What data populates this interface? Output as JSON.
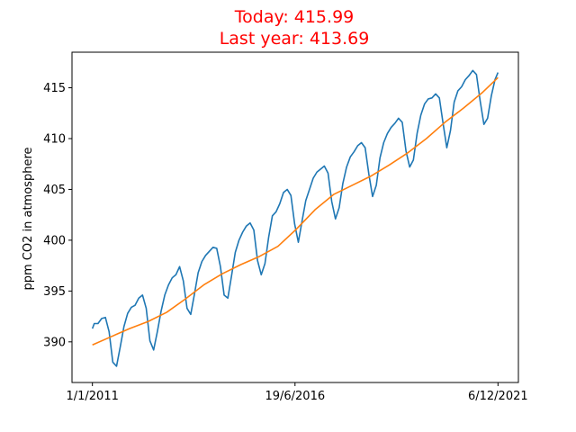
{
  "chart_data": {
    "type": "line",
    "title_lines": [
      "Today: 415.99",
      "Last year: 413.69"
    ],
    "title_color": "#ff0000",
    "ylabel": "ppm CO2 in atmosphere",
    "xlabel": "",
    "x_ticks": [
      {
        "value": 2011.0,
        "label": "1/1/2011"
      },
      {
        "value": 2016.46,
        "label": "19/6/2016"
      },
      {
        "value": 2021.93,
        "label": "6/12/2021"
      }
    ],
    "y_ticks": [
      390,
      395,
      400,
      405,
      410,
      415
    ],
    "xlim": [
      2010.45,
      2022.48
    ],
    "ylim": [
      386.0,
      418.5
    ],
    "grid": false,
    "series": [
      {
        "color": "#1f77b4",
        "x": [
          2011.0,
          2011.05,
          2011.15,
          2011.25,
          2011.35,
          2011.45,
          2011.55,
          2011.65,
          2011.75,
          2011.85,
          2011.95,
          2012.05,
          2012.15,
          2012.25,
          2012.35,
          2012.45,
          2012.55,
          2012.65,
          2012.75,
          2012.85,
          2012.95,
          2013.05,
          2013.15,
          2013.25,
          2013.35,
          2013.45,
          2013.55,
          2013.65,
          2013.75,
          2013.85,
          2013.95,
          2014.05,
          2014.15,
          2014.25,
          2014.35,
          2014.45,
          2014.55,
          2014.65,
          2014.75,
          2014.85,
          2014.95,
          2015.05,
          2015.15,
          2015.25,
          2015.35,
          2015.45,
          2015.55,
          2015.65,
          2015.75,
          2015.85,
          2015.95,
          2016.05,
          2016.15,
          2016.25,
          2016.35,
          2016.45,
          2016.55,
          2016.65,
          2016.75,
          2016.85,
          2016.95,
          2017.05,
          2017.15,
          2017.25,
          2017.35,
          2017.45,
          2017.55,
          2017.65,
          2017.75,
          2017.85,
          2017.95,
          2018.05,
          2018.15,
          2018.25,
          2018.35,
          2018.45,
          2018.55,
          2018.65,
          2018.75,
          2018.85,
          2018.95,
          2019.05,
          2019.15,
          2019.25,
          2019.35,
          2019.45,
          2019.55,
          2019.65,
          2019.75,
          2019.85,
          2019.95,
          2020.05,
          2020.15,
          2020.25,
          2020.35,
          2020.45,
          2020.55,
          2020.65,
          2020.75,
          2020.85,
          2020.95,
          2021.05,
          2021.15,
          2021.25,
          2021.35,
          2021.45,
          2021.55,
          2021.65,
          2021.75,
          2021.85,
          2021.93
        ],
        "values": [
          391.3,
          391.8,
          391.8,
          392.3,
          392.4,
          391.0,
          388.0,
          387.6,
          389.5,
          391.5,
          392.8,
          393.4,
          393.6,
          394.3,
          394.6,
          393.3,
          390.1,
          389.2,
          391.0,
          393.0,
          394.6,
          395.6,
          396.3,
          396.6,
          397.4,
          396.0,
          393.3,
          392.7,
          394.7,
          396.8,
          397.9,
          398.5,
          398.9,
          399.3,
          399.2,
          397.4,
          394.6,
          394.3,
          396.5,
          398.8,
          400.0,
          400.8,
          401.4,
          401.7,
          401.0,
          398.0,
          396.6,
          397.7,
          400.3,
          402.4,
          402.8,
          403.6,
          404.7,
          405.0,
          404.4,
          401.6,
          399.8,
          401.9,
          403.9,
          405.0,
          406.1,
          406.7,
          407.0,
          407.3,
          406.6,
          403.8,
          402.1,
          403.2,
          405.6,
          407.2,
          408.2,
          408.7,
          409.3,
          409.6,
          409.1,
          406.5,
          404.3,
          405.4,
          408.1,
          409.6,
          410.5,
          411.1,
          411.5,
          412.0,
          411.6,
          408.8,
          407.2,
          407.9,
          410.5,
          412.3,
          413.4,
          413.9,
          414.0,
          414.4,
          414.0,
          411.5,
          409.1,
          410.8,
          413.6,
          414.7,
          415.1,
          415.8,
          416.2,
          416.7,
          416.3,
          413.7,
          411.4,
          412.0,
          414.2,
          415.8,
          416.5
        ]
      },
      {
        "color": "#ff7f0e",
        "x": [
          2011.0,
          2011.5,
          2012.0,
          2012.5,
          2013.0,
          2013.5,
          2014.0,
          2014.5,
          2015.0,
          2015.5,
          2016.0,
          2016.5,
          2017.0,
          2017.5,
          2018.0,
          2018.5,
          2019.0,
          2019.5,
          2020.0,
          2020.5,
          2021.0,
          2021.5,
          2021.93
        ],
        "values": [
          389.7,
          390.5,
          391.3,
          392.0,
          392.9,
          394.2,
          395.6,
          396.7,
          397.6,
          398.4,
          399.4,
          401.1,
          403.0,
          404.5,
          405.4,
          406.3,
          407.4,
          408.6,
          410.0,
          411.6,
          413.0,
          414.5,
          416.0
        ]
      }
    ]
  }
}
